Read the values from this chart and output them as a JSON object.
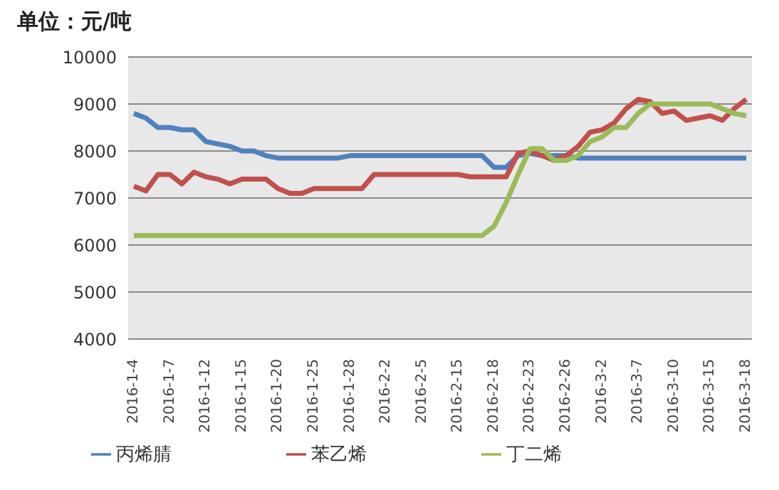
{
  "chart_data": {
    "type": "line",
    "ylabel": "单位：元/吨",
    "categories": [
      "2016-1-4",
      null,
      null,
      "2016-1-7",
      null,
      null,
      "2016-1-12",
      null,
      null,
      "2016-1-15",
      null,
      null,
      "2016-1-20",
      null,
      null,
      "2016-1-25",
      null,
      null,
      "2016-1-28",
      null,
      null,
      "2016-2-2",
      null,
      null,
      "2016-2-5",
      null,
      null,
      "2016-2-15",
      null,
      null,
      "2016-2-18",
      null,
      null,
      "2016-2-23",
      null,
      null,
      "2016-2-26",
      null,
      null,
      "2016-3-2",
      null,
      null,
      "2016-3-7",
      null,
      null,
      "2016-3-10",
      null,
      null,
      "2016-3-15",
      null,
      null,
      "2016-3-18"
    ],
    "series": [
      {
        "name": "丙烯腈",
        "color": "#4f81bd",
        "values": [
          8800,
          8700,
          8500,
          8500,
          8450,
          8450,
          8200,
          8150,
          8100,
          8000,
          8000,
          7900,
          7850,
          7850,
          7850,
          7850,
          7850,
          7850,
          7900,
          7900,
          7900,
          7900,
          7900,
          7900,
          7900,
          7900,
          7900,
          7900,
          7900,
          7900,
          7650,
          7650,
          7900,
          7950,
          7900,
          7900,
          7900,
          7850,
          7850,
          7850,
          7850,
          7850,
          7850,
          7850,
          7850,
          7850,
          7850,
          7850,
          7850,
          7850,
          7850,
          7850
        ]
      },
      {
        "name": "苯乙烯",
        "color": "#c0504d",
        "values": [
          7250,
          7150,
          7500,
          7500,
          7300,
          7550,
          7450,
          7400,
          7300,
          7400,
          7400,
          7400,
          7200,
          7100,
          7100,
          7200,
          7200,
          7200,
          7200,
          7200,
          7500,
          7500,
          7500,
          7500,
          7500,
          7500,
          7500,
          7500,
          7450,
          7450,
          7450,
          7450,
          7950,
          8000,
          7900,
          7800,
          7900,
          8100,
          8400,
          8450,
          8600,
          8900,
          9100,
          9050,
          8800,
          8850,
          8650,
          8700,
          8750,
          8650,
          8900,
          9100
        ]
      },
      {
        "name": "丁二烯",
        "color": "#9bbb59",
        "values": [
          6200,
          6200,
          6200,
          6200,
          6200,
          6200,
          6200,
          6200,
          6200,
          6200,
          6200,
          6200,
          6200,
          6200,
          6200,
          6200,
          6200,
          6200,
          6200,
          6200,
          6200,
          6200,
          6200,
          6200,
          6200,
          6200,
          6200,
          6200,
          6200,
          6200,
          6400,
          6900,
          7500,
          8050,
          8050,
          7800,
          7800,
          7900,
          8200,
          8300,
          8500,
          8500,
          8800,
          9000,
          9000,
          9000,
          9000,
          9000,
          9000,
          8900,
          8800,
          8750
        ]
      }
    ],
    "ylim": [
      4000,
      10000
    ],
    "yticks": [
      4000,
      5000,
      6000,
      7000,
      8000,
      9000,
      10000
    ],
    "grid": "y",
    "legend": "bottom",
    "marker": "none",
    "line_style": "solid"
  }
}
